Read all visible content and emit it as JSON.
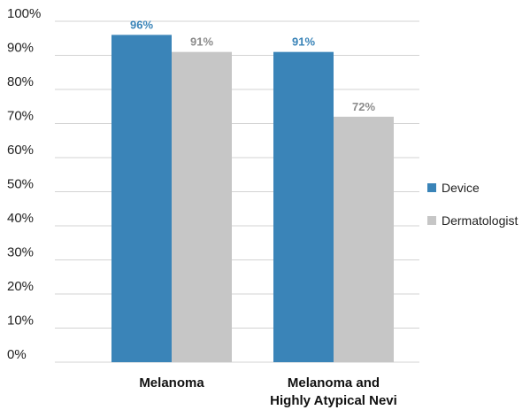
{
  "chart_data": {
    "type": "bar",
    "categories": [
      [
        "Melanoma"
      ],
      [
        "Melanoma and",
        "Highly Atypical Nevi"
      ]
    ],
    "series": [
      {
        "name": "Device",
        "values": [
          96,
          91
        ],
        "labels": [
          "96%",
          "91%"
        ],
        "color": "#3a84b8",
        "label_color": "#3a84b8"
      },
      {
        "name": "Dermatologist",
        "values": [
          91,
          72
        ],
        "labels": [
          "91%",
          "72%"
        ],
        "color": "#c6c6c6",
        "label_color": "#8c8c8c"
      }
    ],
    "ylim": [
      0,
      100
    ],
    "yticks": [
      0,
      10,
      20,
      30,
      40,
      50,
      60,
      70,
      80,
      90,
      100
    ],
    "ytick_labels": [
      "0%",
      "10%",
      "20%",
      "30%",
      "40%",
      "50%",
      "60%",
      "70%",
      "80%",
      "90%",
      "100%"
    ],
    "grid": true,
    "legend_position": "right",
    "gridline_color": "#d3d3d3"
  }
}
